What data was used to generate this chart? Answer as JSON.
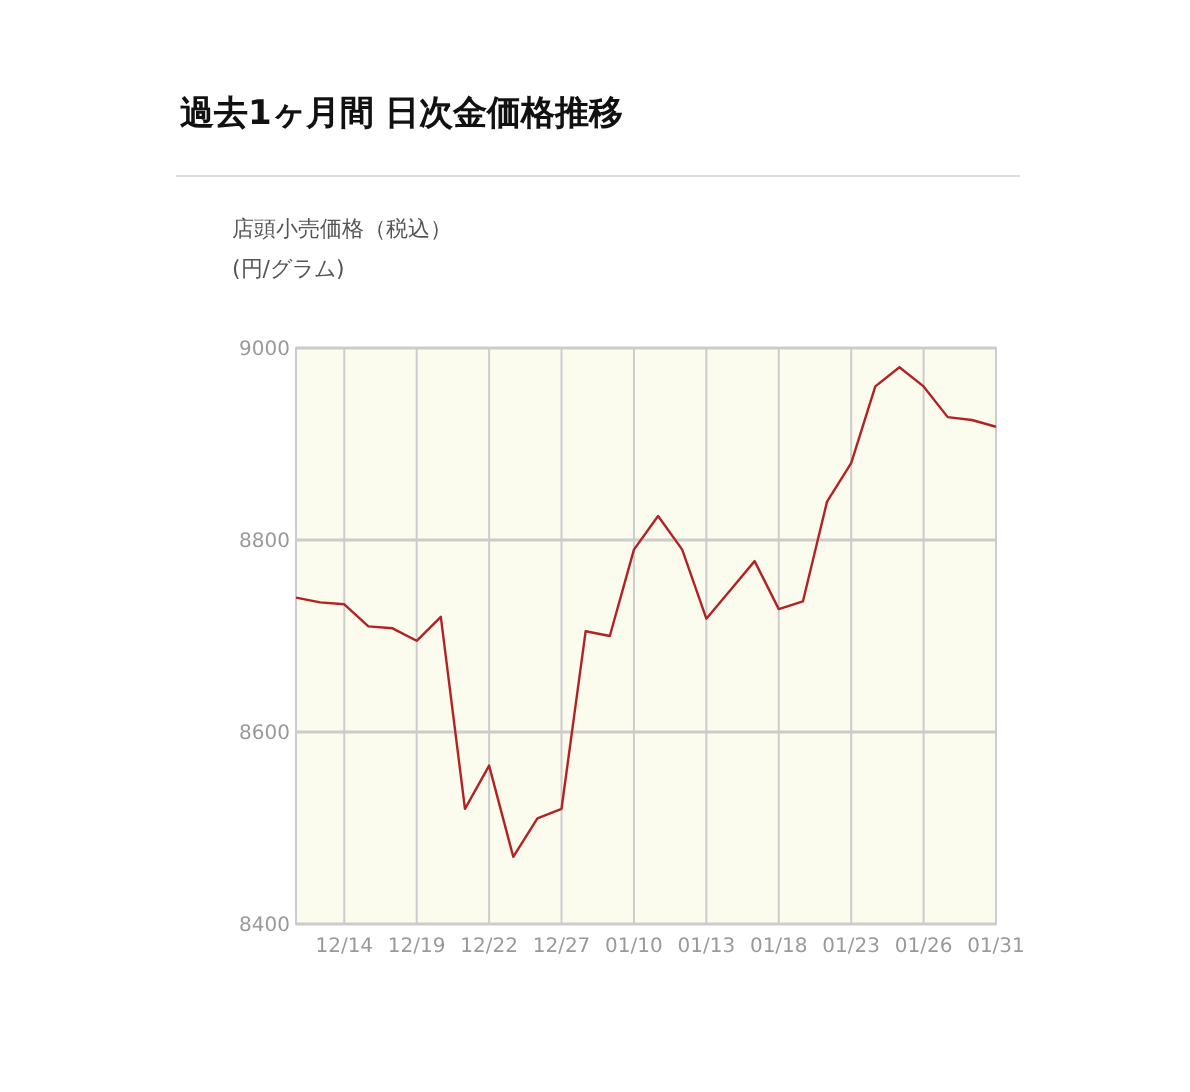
{
  "chart_data": {
    "type": "line",
    "title": "過去1ヶ月間 日次金価格推移",
    "subtitle": "店頭小売価格（税込）",
    "ylabel": "(円/グラム)",
    "categories": [
      null,
      null,
      "12/14",
      null,
      null,
      "12/19",
      null,
      null,
      "12/22",
      null,
      null,
      "12/27",
      null,
      null,
      "01/10",
      null,
      null,
      "01/13",
      null,
      null,
      "01/18",
      null,
      null,
      "01/23",
      null,
      null,
      "01/26",
      null,
      null,
      "01/31"
    ],
    "series": [
      {
        "color": "#b22222",
        "values": [
          8740,
          8735,
          8733,
          8710,
          8708,
          8695,
          8720,
          8520,
          8565,
          8470,
          8510,
          8520,
          8705,
          8700,
          8790,
          8825,
          8790,
          8718,
          8748,
          8778,
          8728,
          8736,
          8840,
          8880,
          8960,
          8980,
          8960,
          8928,
          8925,
          8918
        ]
      }
    ],
    "ylim": [
      8400,
      9000
    ],
    "yticks": [
      8400,
      8600,
      8800,
      9000
    ],
    "grid": true,
    "marker": "none",
    "line_style": "solid"
  }
}
